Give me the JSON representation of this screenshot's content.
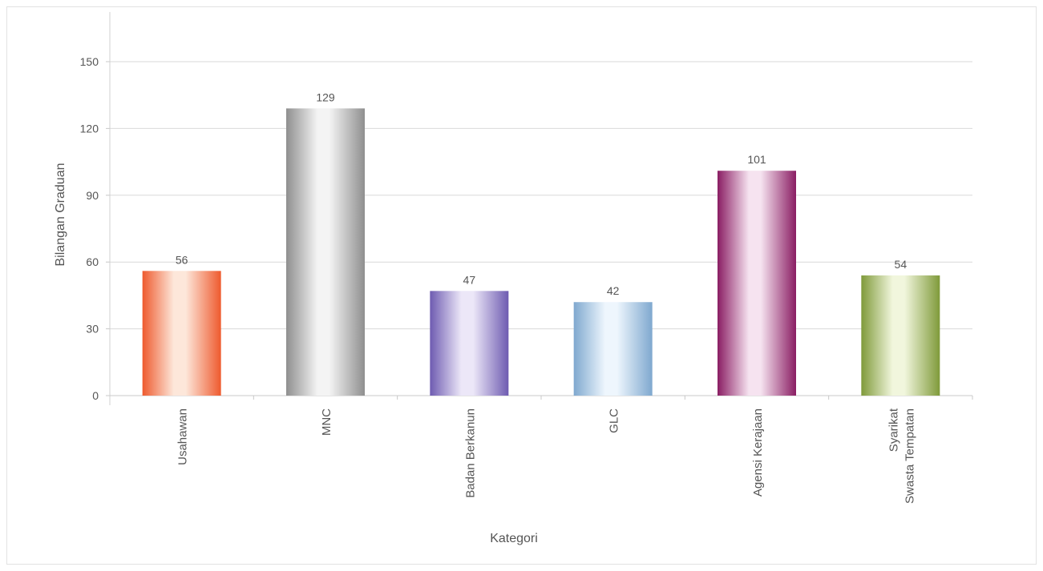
{
  "chart_data": {
    "type": "bar",
    "title": "",
    "xlabel": "Kategori",
    "ylabel": "Bilangan Graduan",
    "ylim": [
      0,
      150
    ],
    "yticks": [
      0,
      30,
      60,
      90,
      120,
      150
    ],
    "grid": true,
    "legend": "none",
    "categories": [
      [
        "Usahawan"
      ],
      [
        "MNC"
      ],
      [
        "Badan Berkanun"
      ],
      [
        "GLC"
      ],
      [
        "Agensi Kerajaan"
      ],
      [
        "Syarikat",
        "Swasta Tempatan"
      ]
    ],
    "values": [
      56,
      129,
      47,
      42,
      101,
      54
    ],
    "colors": [
      {
        "dark": "#ee5a2e",
        "light": "#fde7da"
      },
      {
        "dark": "#8f8f8f",
        "light": "#f4f4f4"
      },
      {
        "dark": "#6e5bb1",
        "light": "#ece7f8"
      },
      {
        "dark": "#7fa8cf",
        "light": "#eef6fd"
      },
      {
        "dark": "#8a1d63",
        "light": "#f6e3f0"
      },
      {
        "dark": "#7f9a3a",
        "light": "#f1f6dd"
      }
    ]
  }
}
